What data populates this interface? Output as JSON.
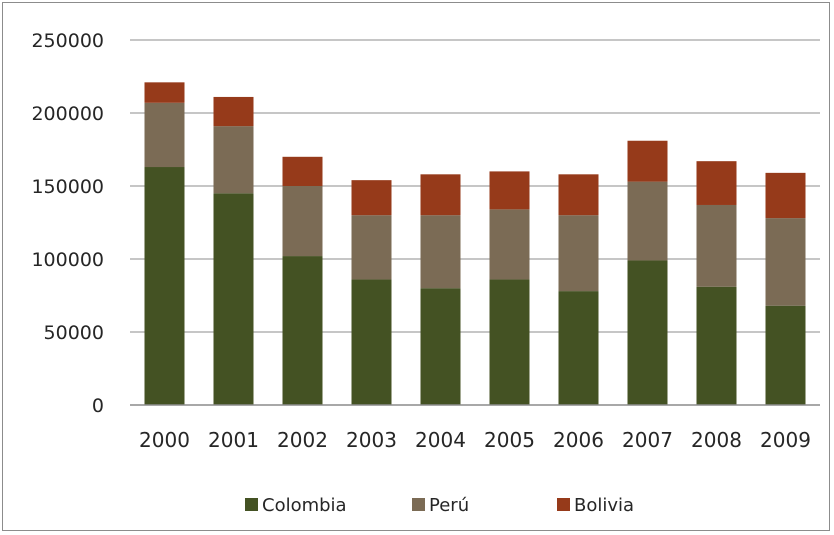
{
  "chart_data": {
    "type": "bar",
    "stacked": true,
    "categories": [
      "2000",
      "2001",
      "2002",
      "2003",
      "2004",
      "2005",
      "2006",
      "2007",
      "2008",
      "2009"
    ],
    "series": [
      {
        "name": "Colombia",
        "color": "#445223",
        "values": [
          163000,
          145000,
          102000,
          86000,
          80000,
          86000,
          78000,
          99000,
          81000,
          68000
        ]
      },
      {
        "name": "Perú",
        "color": "#7b6b55",
        "values": [
          44000,
          46000,
          48000,
          44000,
          50000,
          48000,
          52000,
          54000,
          56000,
          60000
        ]
      },
      {
        "name": "Bolivia",
        "color": "#963a1a",
        "values": [
          14000,
          20000,
          20000,
          24000,
          28000,
          26000,
          28000,
          28000,
          30000,
          31000
        ]
      }
    ],
    "yticks": [
      "0",
      "50000",
      "100000",
      "150000",
      "200000",
      "250000"
    ],
    "ylim": [
      0,
      250000
    ],
    "grid": true,
    "legend": "bottom"
  }
}
